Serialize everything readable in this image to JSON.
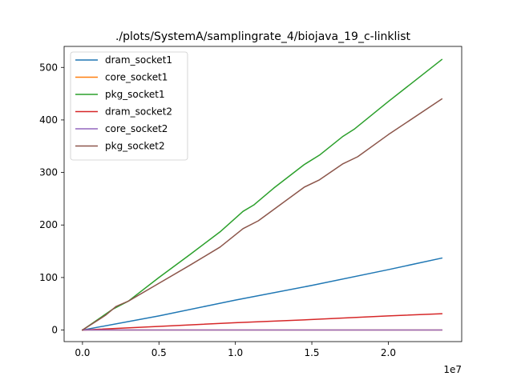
{
  "chart_data": {
    "type": "line",
    "title": "./plots/SystemA/samplingrate_4/biojava_19_c-linklist",
    "xlabel": "",
    "ylabel": "",
    "x_scale_label": "1e7",
    "xlim": [
      -0.12,
      2.48
    ],
    "ylim": [
      -22,
      540
    ],
    "x_ticks": [
      0.0,
      0.5,
      1.0,
      1.5,
      2.0
    ],
    "x_tick_labels": [
      "0.0",
      "0.5",
      "1.0",
      "1.5",
      "2.0"
    ],
    "y_ticks": [
      0,
      100,
      200,
      300,
      400,
      500
    ],
    "y_tick_labels": [
      "0",
      "100",
      "200",
      "300",
      "400",
      "500"
    ],
    "grid": false,
    "legend_position": "top-left",
    "series": [
      {
        "name": "dram_socket1",
        "color": "#1f77b4",
        "x": [
          0,
          0.5,
          1.0,
          1.5,
          2.0,
          2.35
        ],
        "y": [
          0,
          27,
          57,
          85,
          115,
          137
        ]
      },
      {
        "name": "core_socket1",
        "color": "#ff7f0e",
        "x": [
          0,
          0.5,
          1.0,
          1.5,
          2.0,
          2.35
        ],
        "y": [
          0,
          0,
          0,
          0,
          0,
          0
        ]
      },
      {
        "name": "pkg_socket1",
        "color": "#2ca02c",
        "x": [
          0,
          0.2,
          0.3,
          0.5,
          0.7,
          0.9,
          1.05,
          1.12,
          1.25,
          1.45,
          1.55,
          1.7,
          1.78,
          2.0,
          2.35
        ],
        "y": [
          0,
          40,
          55,
          100,
          143,
          187,
          226,
          238,
          270,
          315,
          333,
          368,
          383,
          435,
          515
        ]
      },
      {
        "name": "dram_socket2",
        "color": "#d62728",
        "x": [
          0,
          0.5,
          1.0,
          1.5,
          2.0,
          2.35
        ],
        "y": [
          0,
          7,
          14,
          20,
          27,
          31
        ]
      },
      {
        "name": "core_socket2",
        "color": "#9467bd",
        "x": [
          0,
          0.5,
          1.0,
          1.5,
          2.0,
          2.35
        ],
        "y": [
          0,
          0,
          0,
          0,
          0,
          0
        ]
      },
      {
        "name": "pkg_socket2",
        "color": "#8c564b",
        "x": [
          0,
          0.15,
          0.22,
          0.3,
          0.5,
          0.7,
          0.9,
          1.05,
          1.15,
          1.3,
          1.45,
          1.55,
          1.7,
          1.8,
          2.0,
          2.35
        ],
        "y": [
          0,
          28,
          45,
          55,
          89,
          123,
          158,
          193,
          208,
          240,
          272,
          286,
          316,
          330,
          372,
          440
        ]
      }
    ]
  }
}
